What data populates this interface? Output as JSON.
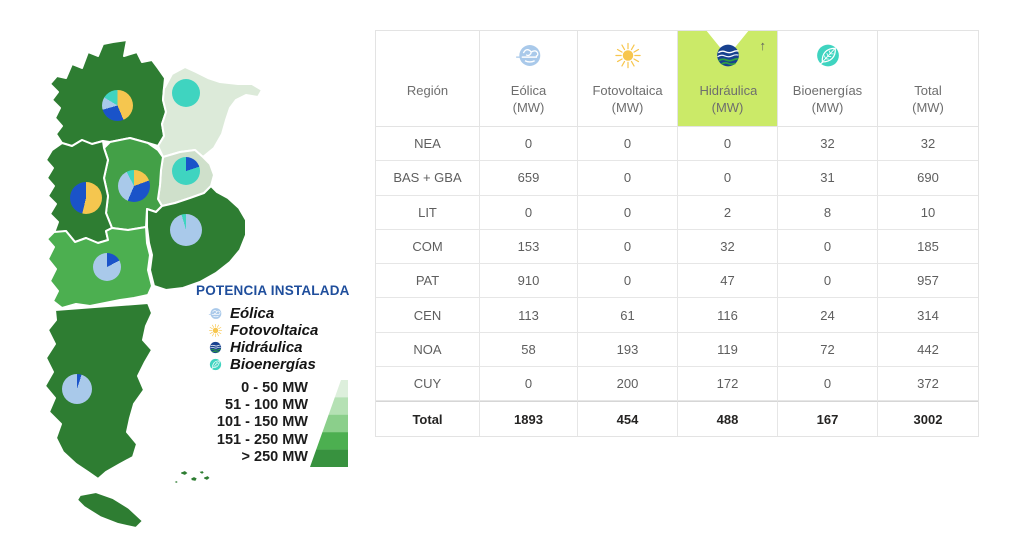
{
  "map_legend": {
    "title": "POTENCIA INSTALADA",
    "energy_types": [
      {
        "label": "Eólica",
        "icon": "wind-icon",
        "color": "#a9c9ea"
      },
      {
        "label": "Fotovoltaica",
        "icon": "sun-icon",
        "color": "#f5c64f"
      },
      {
        "label": "Hidráulica",
        "icon": "water-icon",
        "color": "#1a53c9"
      },
      {
        "label": "Bioenergías",
        "icon": "leaf-icon",
        "color": "#3fd4c0"
      }
    ],
    "power_ranges": [
      {
        "label": "0 - 50 MW",
        "color": "#ddefdc"
      },
      {
        "label": "51 - 100 MW",
        "color": "#b5e1b4"
      },
      {
        "label": "101 - 150 MW",
        "color": "#8bcf8b"
      },
      {
        "label": "151 - 250 MW",
        "color": "#4caf50"
      },
      {
        "label": "> 250 MW",
        "color": "#38923f"
      }
    ]
  },
  "table": {
    "columns": [
      {
        "label": "Región",
        "sub": ""
      },
      {
        "label": "Eólica",
        "sub": "(MW)",
        "icon": "wind-icon"
      },
      {
        "label": "Fotovoltaica",
        "sub": "(MW)",
        "icon": "sun-icon"
      },
      {
        "label": "Hidráulica",
        "sub": "(MW)",
        "icon": "water-icon",
        "highlighted": true,
        "sort_indicator": "↑",
        "highlight_color": "#cbea68"
      },
      {
        "label": "Bioenergías",
        "sub": "(MW)",
        "icon": "leaf-icon"
      },
      {
        "label": "Total",
        "sub": "(MW)"
      }
    ],
    "rows": [
      {
        "region": "NEA",
        "values": [
          0,
          0,
          0,
          32,
          32
        ]
      },
      {
        "region": "BAS + GBA",
        "values": [
          659,
          0,
          0,
          31,
          690
        ]
      },
      {
        "region": "LIT",
        "values": [
          0,
          0,
          2,
          8,
          10
        ]
      },
      {
        "region": "COM",
        "values": [
          153,
          0,
          32,
          0,
          185
        ]
      },
      {
        "region": "PAT",
        "values": [
          910,
          0,
          47,
          0,
          957
        ]
      },
      {
        "region": "CEN",
        "values": [
          113,
          61,
          116,
          24,
          314
        ]
      },
      {
        "region": "NOA",
        "values": [
          58,
          193,
          119,
          72,
          442
        ]
      },
      {
        "region": "CUY",
        "values": [
          0,
          200,
          172,
          0,
          372
        ]
      }
    ],
    "total_row": {
      "label": "Total",
      "values": [
        1893,
        454,
        488,
        167,
        3002
      ]
    }
  },
  "chart_data": [
    {
      "type": "heatmap",
      "subtype": "choropleth map of Argentina with per-region pie markers",
      "legend_title": "POTENCIA INSTALADA",
      "legend_position": "bottom-right of map",
      "pie_slice_order_clockwise_from_top": [
        "Fotovoltaica",
        "Hidráulica",
        "Eólica",
        "Bioenergías"
      ],
      "color_scale": [
        {
          "range": "0 - 50 MW",
          "color": "#ddefdc"
        },
        {
          "range": "51 - 100 MW",
          "color": "#b5e1b4"
        },
        {
          "range": "101 - 150 MW",
          "color": "#8bcf8b"
        },
        {
          "range": "151 - 250 MW",
          "color": "#4caf50"
        },
        {
          "range": "> 250 MW",
          "color": "#38923f"
        }
      ],
      "regions": [
        {
          "code": "NOA",
          "fill": "#2e7d32",
          "eolica": 58,
          "fotovoltaica": 193,
          "hidraulica": 119,
          "bioenergias": 72,
          "total": 442
        },
        {
          "code": "NEA",
          "fill": "#dcead9",
          "eolica": 0,
          "fotovoltaica": 0,
          "hidraulica": 0,
          "bioenergias": 32,
          "total": 32
        },
        {
          "code": "LIT",
          "fill": "#cfe0cb",
          "eolica": 0,
          "fotovoltaica": 0,
          "hidraulica": 2,
          "bioenergias": 8,
          "total": 10
        },
        {
          "code": "CEN",
          "fill": "#43a047",
          "eolica": 113,
          "fotovoltaica": 61,
          "hidraulica": 116,
          "bioenergias": 24,
          "total": 314
        },
        {
          "code": "CUY",
          "fill": "#2e7d32",
          "eolica": 0,
          "fotovoltaica": 200,
          "hidraulica": 172,
          "bioenergias": 0,
          "total": 372
        },
        {
          "code": "BAS",
          "fill": "#2e7d32",
          "eolica": 659,
          "fotovoltaica": 0,
          "hidraulica": 0,
          "bioenergias": 31,
          "total": 690
        },
        {
          "code": "COM",
          "fill": "#4caf50",
          "eolica": 153,
          "fotovoltaica": 0,
          "hidraulica": 32,
          "bioenergias": 0,
          "total": 185
        },
        {
          "code": "PAT",
          "fill": "#2e7d32",
          "eolica": 910,
          "fotovoltaica": 0,
          "hidraulica": 47,
          "bioenergias": 0,
          "total": 957
        },
        {
          "code": "TDF",
          "fill": "#2e7d32",
          "note": "Tierra del Fuego, drawn as part of PAT region"
        },
        {
          "code": "MALV",
          "fill": "#2e7d32",
          "note": "Islas Malvinas specks"
        }
      ]
    },
    {
      "type": "table",
      "columns": [
        "Región",
        "Eólica (MW)",
        "Fotovoltaica (MW)",
        "Hidráulica (MW)",
        "Bioenergías (MW)",
        "Total (MW)"
      ],
      "rows": [
        [
          "NEA",
          0,
          0,
          0,
          32,
          32
        ],
        [
          "BAS + GBA",
          659,
          0,
          0,
          31,
          690
        ],
        [
          "LIT",
          0,
          0,
          2,
          8,
          10
        ],
        [
          "COM",
          153,
          0,
          32,
          0,
          185
        ],
        [
          "PAT",
          910,
          0,
          47,
          0,
          957
        ],
        [
          "CEN",
          113,
          61,
          116,
          24,
          314
        ],
        [
          "NOA",
          58,
          193,
          119,
          72,
          442
        ],
        [
          "CUY",
          0,
          200,
          172,
          0,
          372
        ],
        [
          "Total",
          1893,
          454,
          488,
          167,
          3002
        ]
      ]
    }
  ]
}
